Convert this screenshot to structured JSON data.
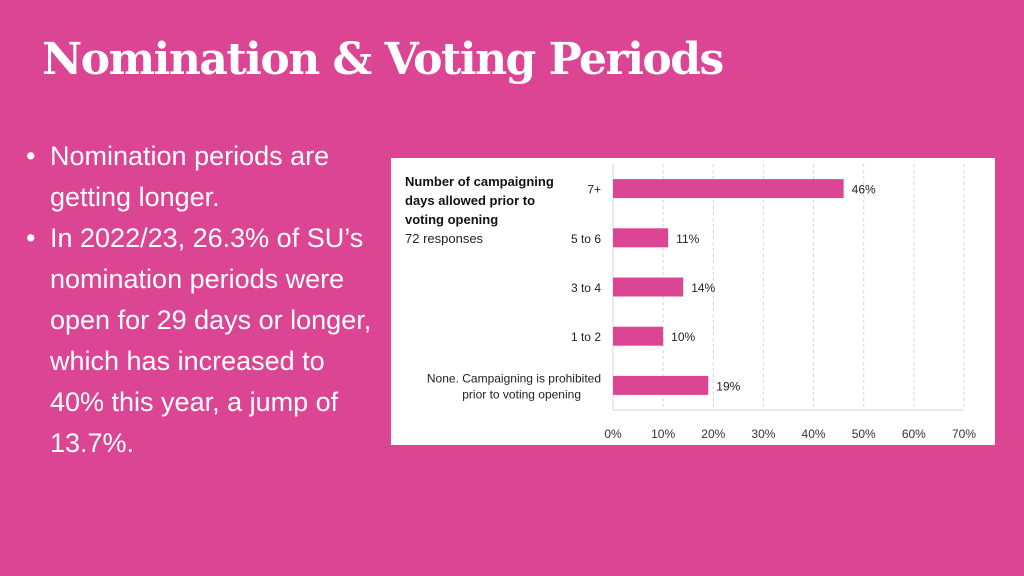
{
  "slide": {
    "title": "Nomination & Voting Periods",
    "bullets": [
      "Nomination periods are getting longer.",
      "In 2022/23, 26.3% of SU’s nomination periods were open for 29 days or longer, which has increased to 40% this year, a jump of 13.7%."
    ],
    "bullet_glyph": "•"
  },
  "colors": {
    "background": "#db4594",
    "bar": "#db4594",
    "card": "#ffffff"
  },
  "chart_data": {
    "type": "bar",
    "orientation": "horizontal",
    "title": "Number of campaigning days allowed prior to voting opening",
    "subtitle": "72 responses",
    "categories": [
      "7+",
      "5 to 6",
      "3 to 4",
      "1 to 2",
      "None. Campaigning is prohibited prior to voting opening"
    ],
    "values": [
      46,
      11,
      14,
      10,
      19
    ],
    "data_labels": [
      "46%",
      "11%",
      "14%",
      "10%",
      "19%"
    ],
    "xlim": [
      0,
      70
    ],
    "xticks": [
      "0%",
      "10%",
      "20%",
      "30%",
      "40%",
      "50%",
      "60%",
      "70%"
    ],
    "xlabel": "",
    "ylabel": "",
    "grid": "vertical dashed",
    "legend": "none"
  }
}
